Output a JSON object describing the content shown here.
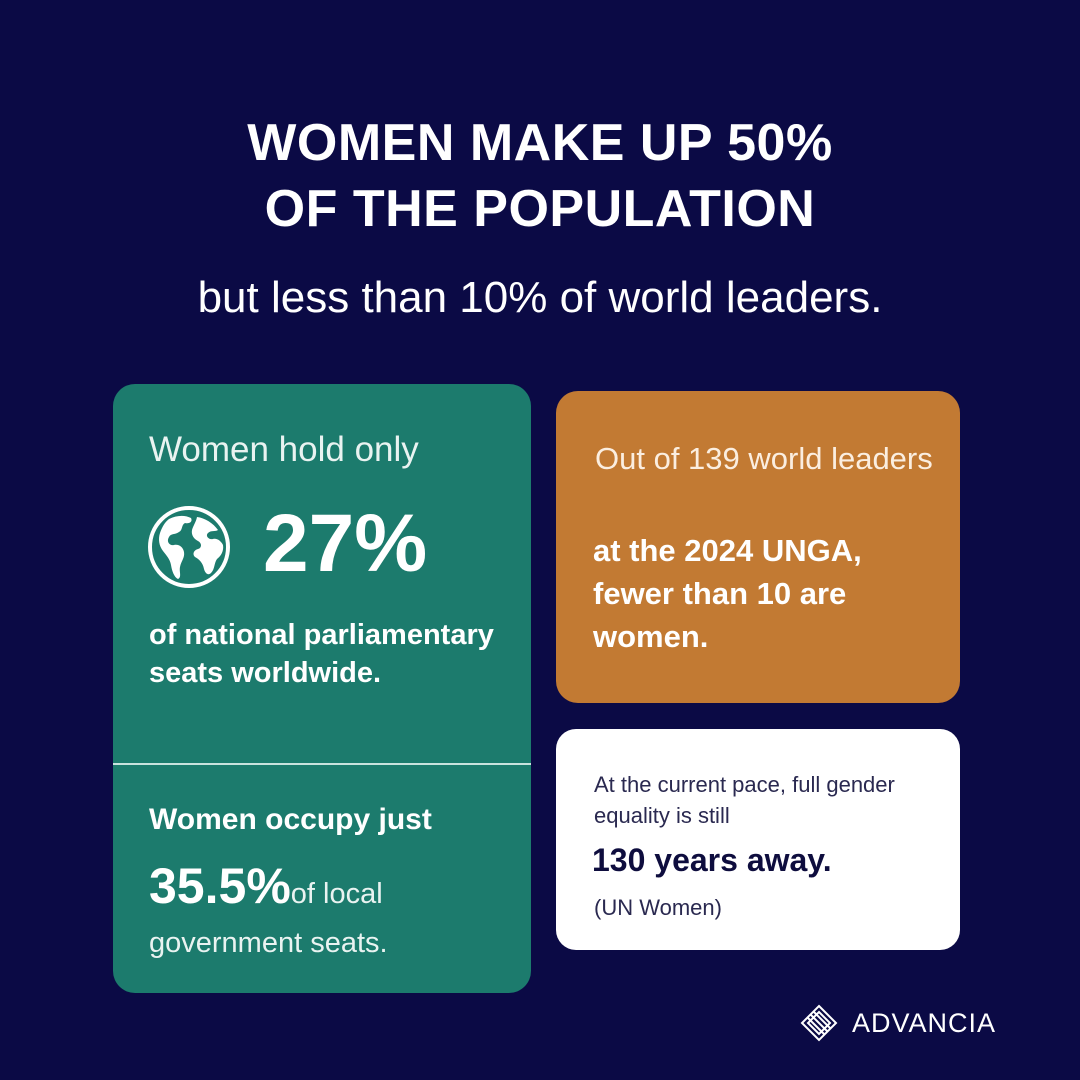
{
  "headline": {
    "line1": "WOMEN MAKE UP 50%",
    "line2": "OF THE POPULATION",
    "subtitle": "but less than 10% of world leaders."
  },
  "parliament_card": {
    "intro": "Women hold only",
    "stat": "27%",
    "description": "of national parliamentary seats worldwide.",
    "icon": "globe-icon",
    "color": "#1c7b6d"
  },
  "local_card": {
    "intro": "Women occupy just",
    "stat": "35.5%",
    "stat_suffix": "of local",
    "tail": "government seats."
  },
  "leaders_card": {
    "intro": "Out of 139 world leaders",
    "highlight": "at the 2024 UNGA, fewer than 10 are women.",
    "color": "#c27a33"
  },
  "equality_card": {
    "intro": "At the current pace, full gender equality is still",
    "highlight": "130 years away.",
    "source": "(UN Women)",
    "color": "#ffffff"
  },
  "brand": {
    "name": "ADVANCIA",
    "icon": "advancia-logo-icon"
  },
  "theme": {
    "background": "#0b0a45"
  }
}
